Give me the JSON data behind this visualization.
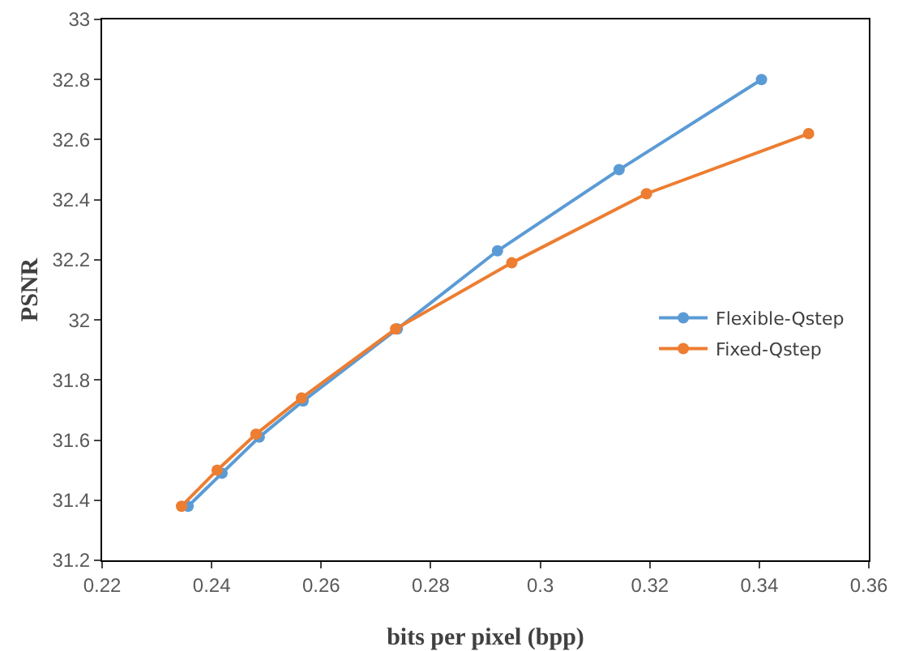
{
  "chart_data": {
    "type": "line",
    "xlabel": "bits per pixel (bpp)",
    "ylabel": "PSNR",
    "xlim": [
      0.22,
      0.36
    ],
    "xticks": [
      0.22,
      0.24,
      0.26,
      0.28,
      0.3,
      0.32,
      0.34,
      0.36
    ],
    "ylim": [
      31.2,
      33
    ],
    "yticks": [
      31.2,
      31.4,
      31.6,
      31.8,
      32,
      32.2,
      32.4,
      32.6,
      32.8,
      33
    ],
    "grid": false,
    "legend": "right",
    "marker": "circle",
    "line_style": "solid",
    "series": [
      {
        "name": "Flexible-Qstep",
        "color": "#5b9bd5",
        "x": [
          0.2357,
          0.2419,
          0.2487,
          0.2567,
          0.2739,
          0.2922,
          0.3144,
          0.3404
        ],
        "values": [
          31.38,
          31.49,
          31.61,
          31.73,
          31.97,
          32.23,
          32.5,
          32.8
        ]
      },
      {
        "name": "Fixed-Qstep",
        "color": "#ed7d31",
        "x": [
          0.2345,
          0.241,
          0.2481,
          0.2564,
          0.2736,
          0.2948,
          0.3194,
          0.349
        ],
        "values": [
          31.38,
          31.5,
          31.62,
          31.74,
          31.97,
          32.19,
          32.42,
          32.62
        ]
      }
    ]
  }
}
